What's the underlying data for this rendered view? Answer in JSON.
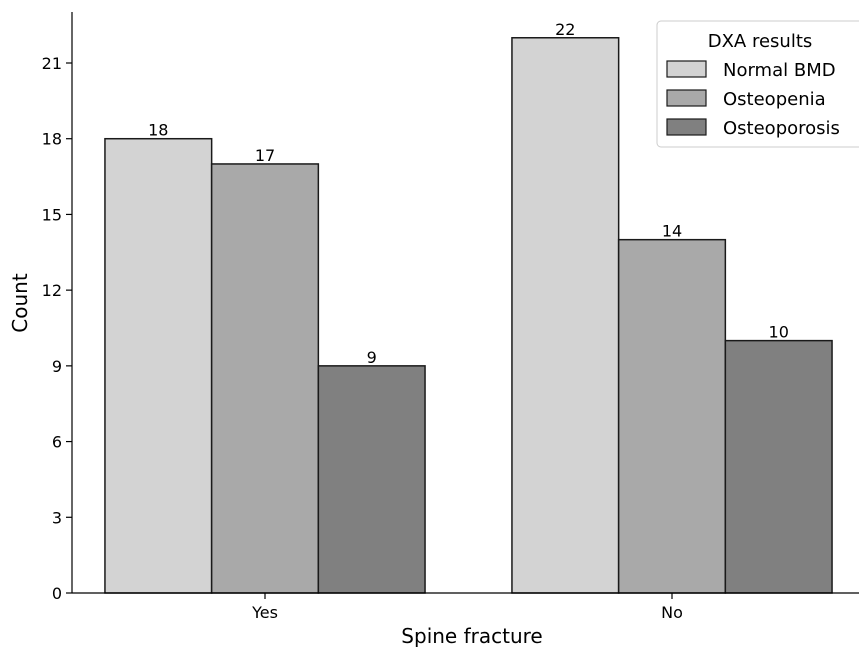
{
  "chart_data": {
    "type": "bar",
    "title": "",
    "xlabel": "Spine fracture",
    "ylabel": "Count",
    "categories": [
      "Yes",
      "No"
    ],
    "series": [
      {
        "name": "Normal BMD",
        "values": [
          18,
          22
        ],
        "color": "#d3d3d3"
      },
      {
        "name": "Osteopenia",
        "values": [
          17,
          14
        ],
        "color": "#a9a9a9"
      },
      {
        "name": "Osteoporosis",
        "values": [
          9,
          10
        ],
        "color": "#808080"
      }
    ],
    "ylim": [
      0,
      22
    ],
    "yticks": [
      0,
      3,
      6,
      9,
      12,
      15,
      18,
      21
    ],
    "legend": {
      "title": "DXA results",
      "placement": "top-right"
    },
    "grid": false
  }
}
